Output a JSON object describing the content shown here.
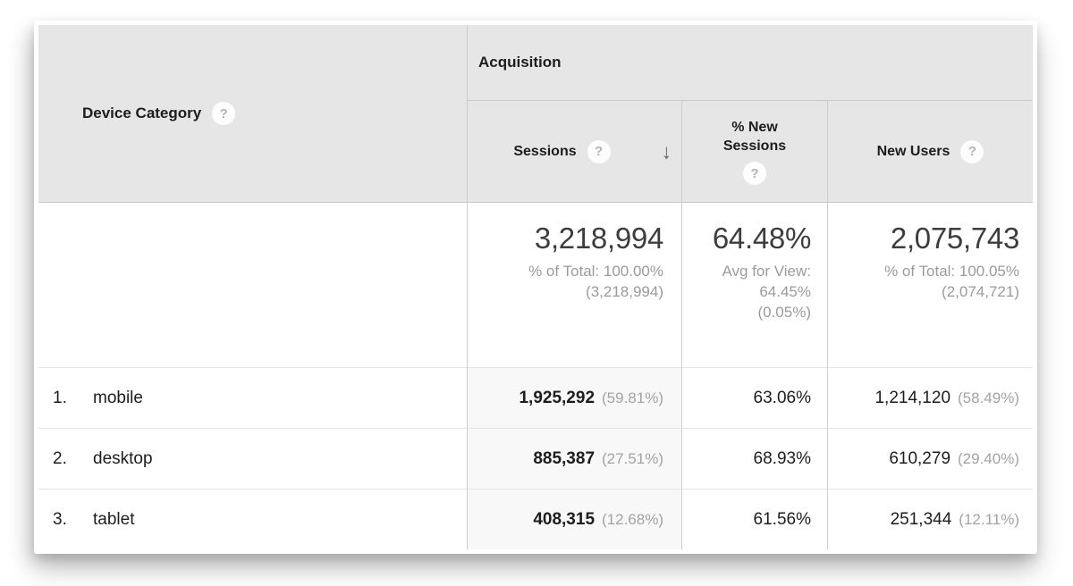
{
  "colors": {
    "header_bg": "#e6e6e6",
    "column_border": "#cdcdcd",
    "row_border": "#e4e4e4",
    "text_dark": "#1d1d1d",
    "text_gray": "#9b9b9b",
    "summary_number": "#3d3d3d",
    "sorted_column_bg": "#f8f8f8"
  },
  "table": {
    "dimension_header": {
      "label": "Device Category",
      "help_icon": "?"
    },
    "group_header": {
      "label": "Acquisition"
    },
    "columns": [
      {
        "label": "Sessions",
        "help_icon": "?",
        "sort_icon": "↓",
        "sorted": "descending"
      },
      {
        "label_line1": "% New",
        "label_line2": "Sessions",
        "help_icon": "?"
      },
      {
        "label": "New Users",
        "help_icon": "?"
      }
    ],
    "summary_row": {
      "sessions": {
        "value": "3,218,994",
        "lines": [
          "% of Total: 100.00%",
          "(3,218,994)"
        ]
      },
      "percent_new_sessions": {
        "value": "64.48%",
        "lines": [
          "Avg for View:",
          "64.45%",
          "(0.05%)"
        ]
      },
      "new_users": {
        "value": "2,075,743",
        "lines": [
          "% of Total: 100.05%",
          "(2,074,721)"
        ]
      }
    },
    "rows": [
      {
        "rank": "1.",
        "device": "mobile",
        "sessions": "1,925,292",
        "sessions_share": "(59.81%)",
        "percent_new_sessions": "63.06%",
        "new_users": "1,214,120",
        "new_users_share": "(58.49%)"
      },
      {
        "rank": "2.",
        "device": "desktop",
        "sessions": "885,387",
        "sessions_share": "(27.51%)",
        "percent_new_sessions": "68.93%",
        "new_users": "610,279",
        "new_users_share": "(29.40%)"
      },
      {
        "rank": "3.",
        "device": "tablet",
        "sessions": "408,315",
        "sessions_share": "(12.68%)",
        "percent_new_sessions": "61.56%",
        "new_users": "251,344",
        "new_users_share": "(12.11%)"
      }
    ]
  }
}
